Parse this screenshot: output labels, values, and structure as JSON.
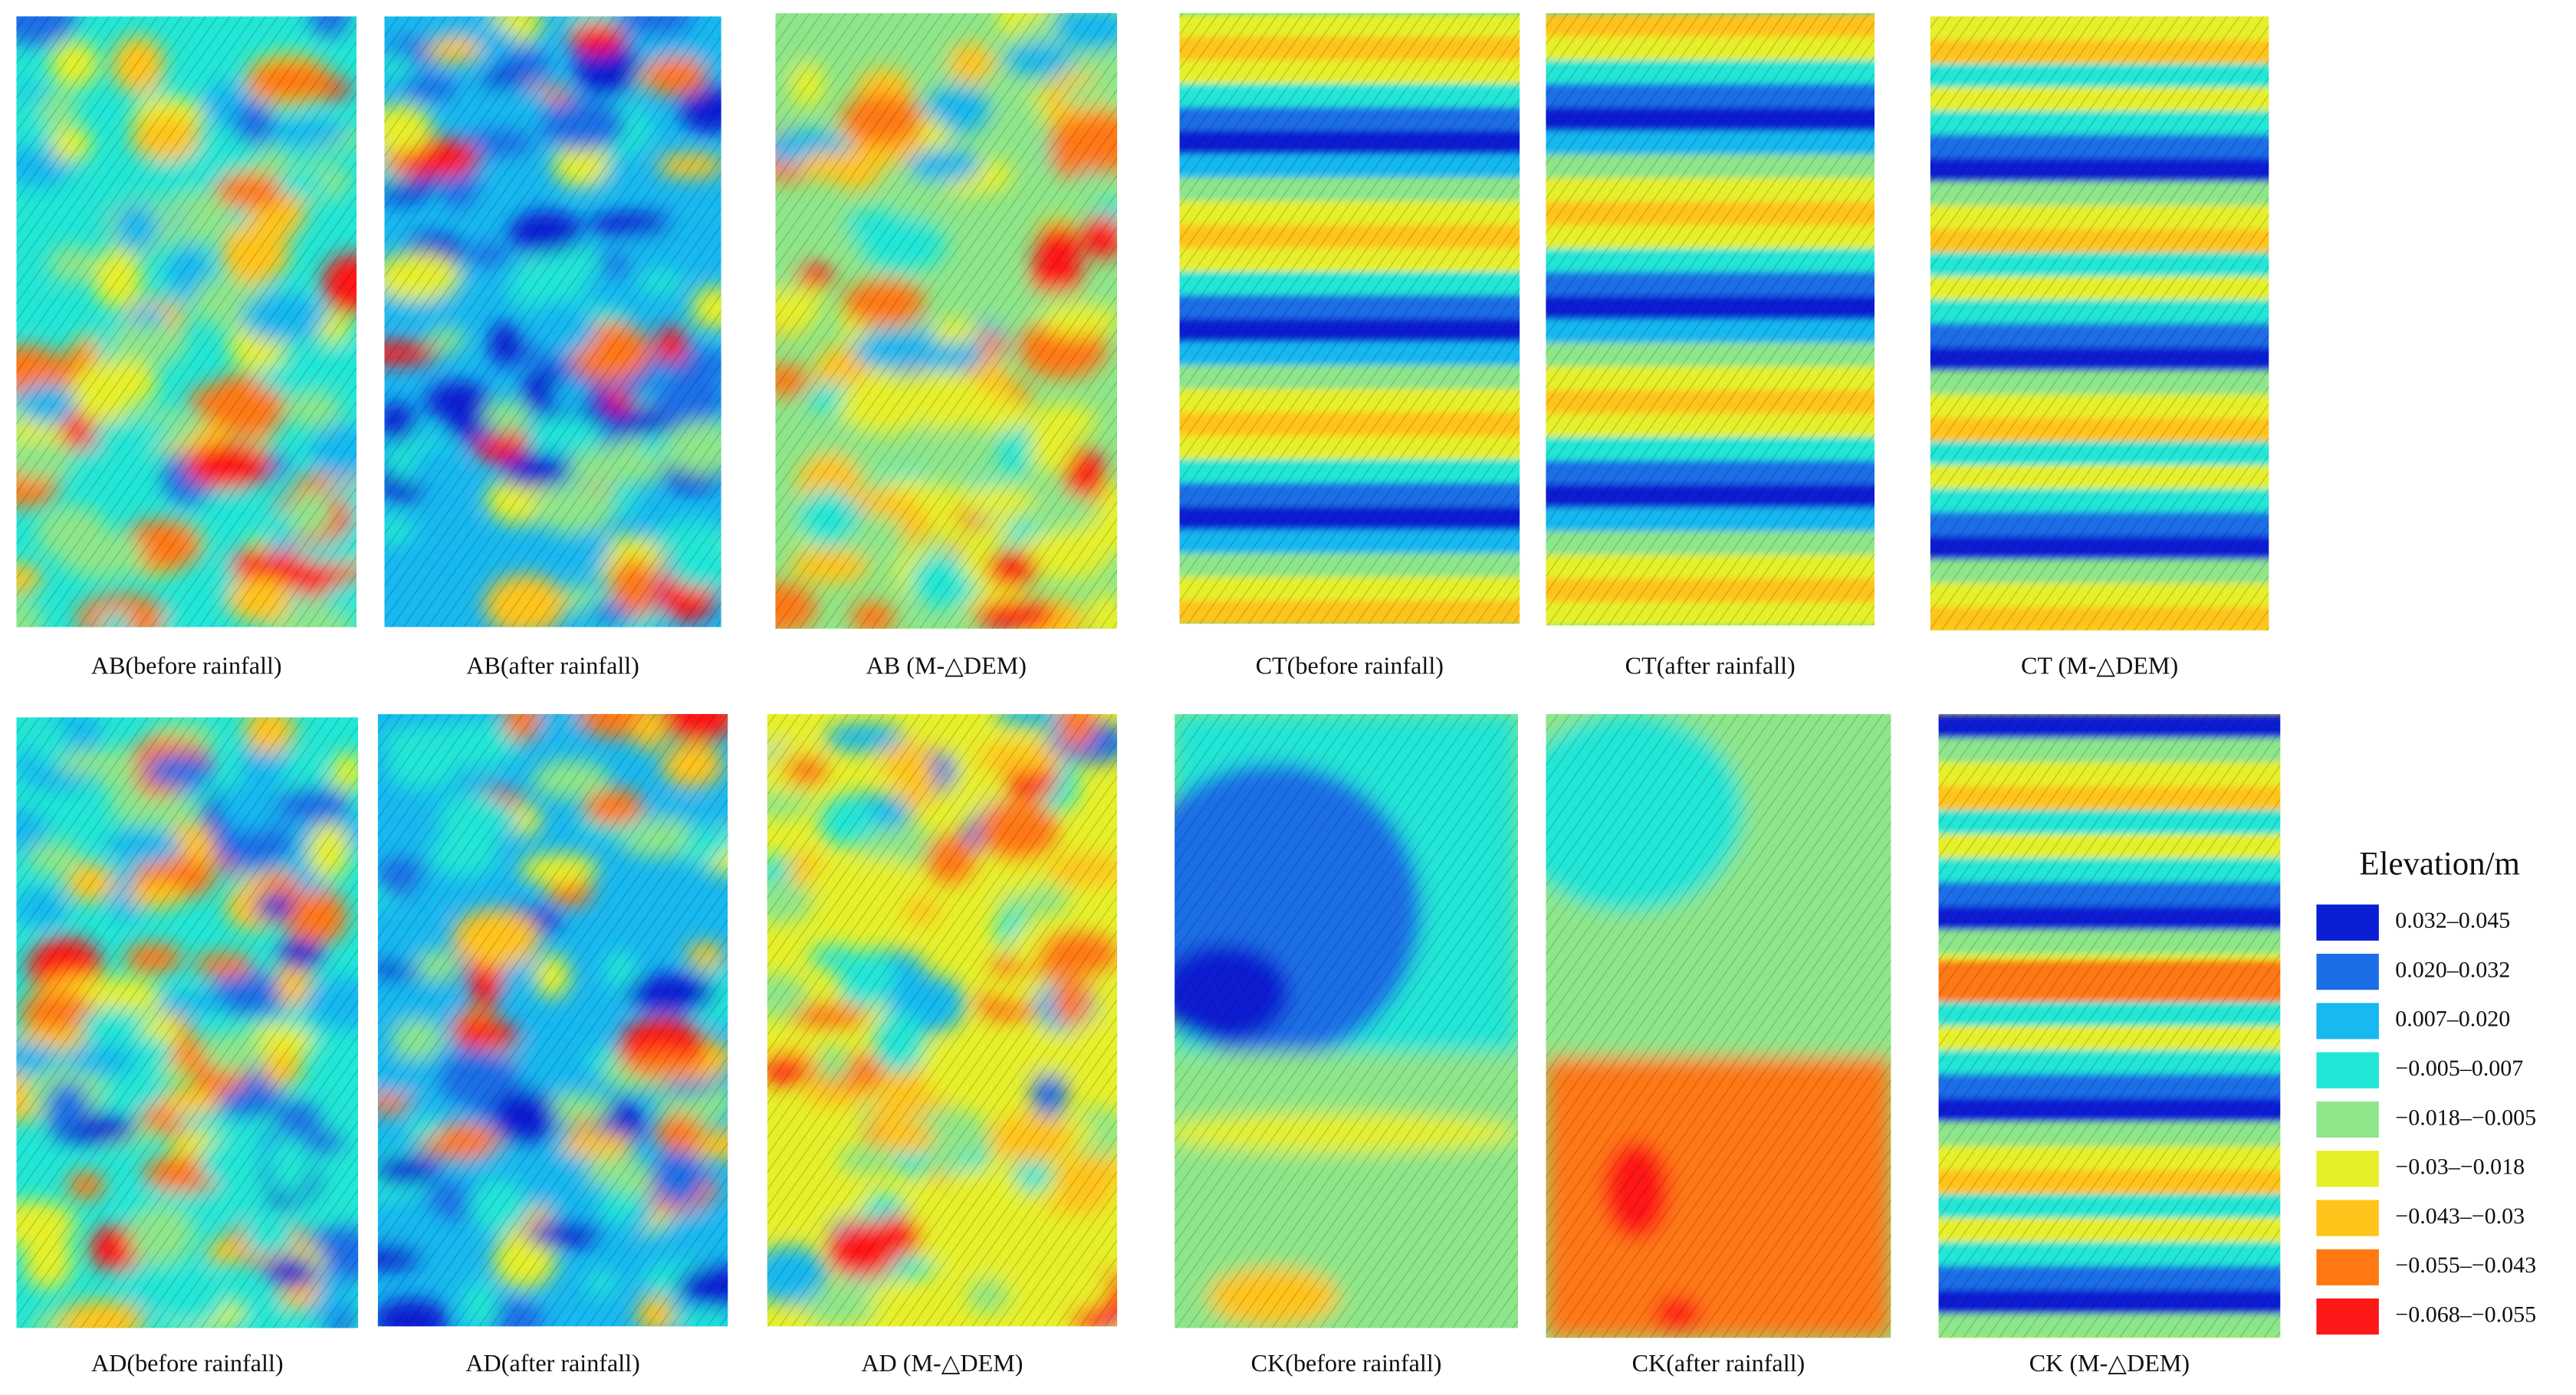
{
  "panels": [
    {
      "caption": "AB(before rainfall)"
    },
    {
      "caption": "AB(after rainfall)"
    },
    {
      "caption": "AB (M-△DEM)"
    },
    {
      "caption": "CT(before rainfall)"
    },
    {
      "caption": "CT(after rainfall)"
    },
    {
      "caption": "CT (M-△DEM)"
    },
    {
      "caption": "AD(before rainfall)"
    },
    {
      "caption": "AD(after rainfall)"
    },
    {
      "caption": "AD (M-△DEM)"
    },
    {
      "caption": "CK(before rainfall)"
    },
    {
      "caption": "CK(after rainfall)"
    },
    {
      "caption": "CK (M-△DEM)"
    }
  ],
  "legend": {
    "title": "Elevation/m",
    "items": [
      {
        "label": "0.032–0.045",
        "color": "#0a1ed2"
      },
      {
        "label": "0.020–0.032",
        "color": "#1c6ee6"
      },
      {
        "label": "0.007–0.020",
        "color": "#18b8f0"
      },
      {
        "label": "−0.005–0.007",
        "color": "#22e6d6"
      },
      {
        "label": "−0.018–−0.005",
        "color": "#8ee68a"
      },
      {
        "label": "−0.03–−0.018",
        "color": "#e6f02a"
      },
      {
        "label": "−0.043–−0.03",
        "color": "#ffc41a"
      },
      {
        "label": "−0.055–−0.043",
        "color": "#ff7812"
      },
      {
        "label": "−0.068–−0.055",
        "color": "#ff1818"
      }
    ]
  }
}
